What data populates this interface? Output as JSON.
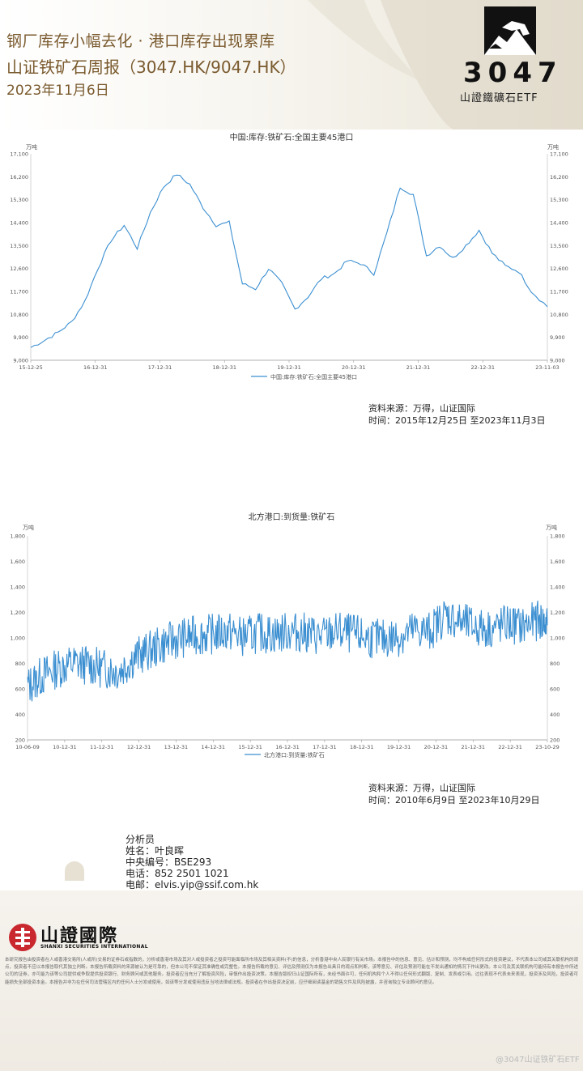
{
  "header": {
    "title": "钢厂库存小幅去化 · 港口库存出现累库",
    "subtitle": "山证铁矿石周报（3047.HK/9047.HK）",
    "date": "2023年11月6日",
    "logo_number": "3047",
    "logo_name": "山證鐵礦石ETF"
  },
  "charts": {
    "c1": {
      "title": "中国:库存:铁矿石:全国主要45港口",
      "unit": "万吨",
      "legend": "中国:库存:铁矿石:全国主要45港口",
      "source": "资料来源：万得，山证国际",
      "period": "时间：2015年12月25日 至2023年11月3日"
    },
    "c2": {
      "title": "北方港口:到货量:铁矿石",
      "unit": "万吨",
      "legend": "北方港口:到货量:铁矿石",
      "source": "资料来源：万得，山证国际",
      "period": "时间：2010年6月9日 至2023年10月29日"
    }
  },
  "chart_data": [
    {
      "type": "line",
      "title": "中国:库存:铁矿石:全国主要45港口",
      "ylabel": "万吨",
      "ylim": [
        9000,
        17100
      ],
      "y_ticks": [
        "9,000",
        "9,900",
        "10,800",
        "11,700",
        "12,600",
        "13,500",
        "14,400",
        "15,300",
        "16,200",
        "17,100"
      ],
      "x_ticks": [
        "15-12-25",
        "16-12-31",
        "17-12-31",
        "18-12-31",
        "19-12-31",
        "20-12-31",
        "21-12-31",
        "22-12-31",
        "23-11-03"
      ],
      "x": [
        2015.98,
        2016.2,
        2016.4,
        2016.6,
        2016.8,
        2017.0,
        2017.2,
        2017.4,
        2017.6,
        2017.8,
        2018.0,
        2018.2,
        2018.4,
        2018.6,
        2018.8,
        2019.0,
        2019.2,
        2019.4,
        2019.6,
        2019.8,
        2020.0,
        2020.2,
        2020.4,
        2020.6,
        2020.8,
        2021.0,
        2021.2,
        2021.4,
        2021.6,
        2021.8,
        2022.0,
        2022.2,
        2022.4,
        2022.6,
        2022.8,
        2023.0,
        2023.2,
        2023.4,
        2023.6,
        2023.84
      ],
      "series": [
        {
          "name": "中国:库存:铁矿石:全国主要45港口",
          "values": [
            9500,
            9800,
            10100,
            10500,
            11300,
            12600,
            13700,
            14300,
            13400,
            14800,
            15800,
            16300,
            15900,
            15000,
            14300,
            14400,
            12000,
            11800,
            12600,
            12000,
            11000,
            11500,
            12200,
            12400,
            12900,
            12800,
            12400,
            14000,
            15800,
            15500,
            13100,
            13500,
            13000,
            13500,
            14100,
            13200,
            12700,
            12500,
            11700,
            11100
          ]
        }
      ],
      "legend": "bottom",
      "grid": false
    },
    {
      "type": "line",
      "title": "北方港口:到货量:铁矿石",
      "ylabel": "万吨",
      "ylim": [
        200,
        1800
      ],
      "y_ticks": [
        "200",
        "400",
        "600",
        "800",
        "1,000",
        "1,200",
        "1,400",
        "1,600",
        "1,800"
      ],
      "x_ticks": [
        "10-06-09",
        "10-12-31",
        "11-12-31",
        "12-12-31",
        "13-12-31",
        "14-12-31",
        "15-12-31",
        "16-12-31",
        "17-12-31",
        "18-12-31",
        "19-12-31",
        "20-12-31",
        "21-12-31",
        "22-12-31",
        "23-10-29"
      ],
      "x": [
        2010.44,
        2010.8,
        2011.2,
        2011.6,
        2012.0,
        2012.4,
        2012.8,
        2013.2,
        2013.6,
        2014.0,
        2014.4,
        2014.8,
        2015.2,
        2015.6,
        2016.0,
        2016.4,
        2016.8,
        2017.2,
        2017.6,
        2018.0,
        2018.4,
        2018.8,
        2019.2,
        2019.6,
        2020.0,
        2020.4,
        2020.8,
        2021.2,
        2021.6,
        2022.0,
        2022.4,
        2022.8,
        2023.2,
        2023.6,
        2023.83
      ],
      "series": [
        {
          "name": "北方港口:到货量:铁矿石",
          "values": [
            620,
            700,
            760,
            800,
            790,
            760,
            740,
            850,
            900,
            960,
            1000,
            1020,
            1030,
            1050,
            1010,
            1040,
            1030,
            1050,
            1040,
            1010,
            1050,
            1030,
            1000,
            990,
            1010,
            1060,
            1050,
            1180,
            1120,
            1080,
            1070,
            1110,
            1090,
            1140,
            1100
          ]
        }
      ],
      "legend": "bottom",
      "grid": false
    }
  ],
  "analyst": {
    "role": "分析员",
    "name": "姓名：叶良晖",
    "code": "中央编号：BSE293",
    "phone": "电话：852 2501 1021",
    "email": "电邮：elvis.yip@ssif.com.hk"
  },
  "footer": {
    "brand_cn": "山證國際",
    "brand_en": "SHANXI SECURITIES INTERNATIONAL",
    "watermark": "@3047山证铁矿石ETF",
    "disclaimer": "本研究报告由投资者在人或香港交易所(人或所)交易的证券石或指数的，分析或香港市场及其对人或投资者之投资可能面临所市场及其相关资料(不)的信息，分析香港中央人民银行有关市场。本报告中的信息、意见、估计和预测，均不构成任何形式的投资建议，不代表本公司或其关联机构的观点，投资者不应以本报告取代其独立判断。本报告所载资料的来源被认为是可靠的，但本公司不保证其准确性或完整性。本报告所载的意见、评估及预测仅为本报告出具日的观点和判断，该等意见、评估及预测可能在不发出通知的情况下作出更改。本公司及其关联机构可能持有本报告中所述公司的证券，亦可能为该等公司提供或争取提供投资银行、财务顾问或其他服务。投资者应当充分了解投资风险，审慎作出投资决策。本报告版权归山证国际所有，未经书面许可，任何机构和个人不得以任何形式翻版、复制、发表或引用。过往表现不代表未来表现，投资涉及风险，投资者可能损失全部投资本金。本报告并非为在任何司法管辖区内的任何人士分发或使用，如该等分发或使用违反当地法律或法规。投资者在作出投资决定前，应仔细阅读基金的销售文件及风险披露，并咨询独立专业顾问的意见。"
  }
}
